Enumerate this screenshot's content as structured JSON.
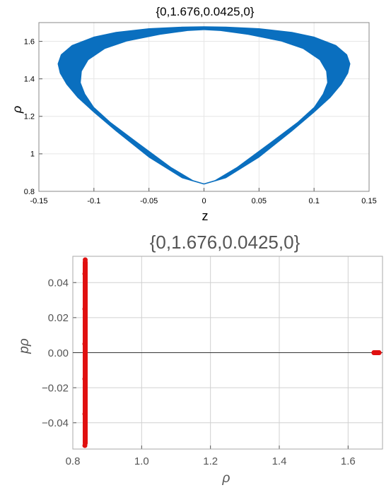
{
  "chart_data": [
    {
      "type": "line",
      "title": "{0,1.676,0.0425,0}",
      "xlabel": "z",
      "ylabel": "ρ",
      "xlim": [
        -0.15,
        0.15
      ],
      "ylim": [
        0.8,
        1.7
      ],
      "xticks": [
        -0.15,
        -0.1,
        -0.05,
        0,
        0.05,
        0.1,
        0.15
      ],
      "xtick_labels": [
        "-0.15",
        "-0.1",
        "-0.05",
        "0",
        "0.05",
        "0.1",
        "0.15"
      ],
      "yticks": [
        0.8,
        1.0,
        1.2,
        1.4,
        1.6
      ],
      "ytick_labels": [
        "0.8",
        "1",
        "1.2",
        "1.4",
        "1.6"
      ],
      "grid": true,
      "series": [
        {
          "color": "#0a6fbf",
          "outer": {
            "x": [
              0,
              0.02,
              0.05,
              0.08,
              0.1,
              0.115,
              0.125,
              0.131,
              0.133,
              0.13,
              0.12,
              0.1,
              0.08,
              0.05,
              0.02,
              0
            ],
            "y": [
              0.836,
              0.87,
              0.98,
              1.12,
              1.22,
              1.3,
              1.37,
              1.43,
              1.48,
              1.53,
              1.58,
              1.625,
              1.65,
              1.67,
              1.678,
              1.68
            ]
          },
          "inner": {
            "x": [
              0,
              0.01,
              0.03,
              0.06,
              0.085,
              0.1,
              0.108,
              0.112,
              0.111,
              0.105,
              0.09,
              0.07,
              0.04,
              0.015,
              0
            ],
            "y": [
              0.842,
              0.86,
              0.93,
              1.06,
              1.17,
              1.25,
              1.32,
              1.38,
              1.44,
              1.5,
              1.56,
              1.6,
              1.635,
              1.655,
              1.66
            ]
          }
        }
      ]
    },
    {
      "type": "scatter",
      "title": "{0,1.676,0.0425,0}",
      "xlabel": "ρ",
      "ylabel": "pρ",
      "xlim": [
        0.8,
        1.7
      ],
      "ylim": [
        -0.055,
        0.055
      ],
      "xticks": [
        0.8,
        1.0,
        1.2,
        1.4,
        1.6
      ],
      "xtick_labels": [
        "0.8",
        "1.0",
        "1.2",
        "1.4",
        "1.6"
      ],
      "yticks": [
        -0.04,
        -0.02,
        0,
        0.02,
        0.04
      ],
      "ytick_labels": [
        "−0.04",
        "−0.02",
        "0.00",
        "0.02",
        "0.04"
      ],
      "grid": true,
      "series": [
        {
          "color": "#e01010",
          "points": [
            [
              0.836,
              0.053
            ],
            [
              0.835,
              0.045
            ],
            [
              0.836,
              0.035
            ],
            [
              0.835,
              0.025
            ],
            [
              0.836,
              0.015
            ],
            [
              0.835,
              0.005
            ],
            [
              0.836,
              -0.005
            ],
            [
              0.835,
              -0.015
            ],
            [
              0.836,
              -0.025
            ],
            [
              0.835,
              -0.035
            ],
            [
              0.836,
              -0.045
            ],
            [
              0.835,
              -0.053
            ],
            [
              1.675,
              0.0
            ],
            [
              1.68,
              0.0
            ],
            [
              1.685,
              0.0
            ],
            [
              1.69,
              0.0
            ]
          ]
        }
      ]
    }
  ]
}
